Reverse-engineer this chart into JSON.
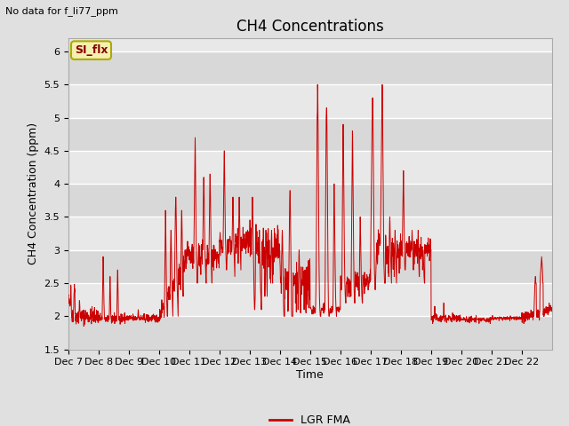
{
  "title": "CH4 Concentrations",
  "ylabel": "CH4 Concentration (ppm)",
  "xlabel": "Time",
  "top_left_note": "No data for f_li77_ppm",
  "legend_label": "LGR FMA",
  "legend_box_label": "SI_flx",
  "ylim": [
    1.5,
    6.2
  ],
  "yticks": [
    1.5,
    2.0,
    2.5,
    3.0,
    3.5,
    4.0,
    4.5,
    5.0,
    5.5,
    6.0
  ],
  "xtick_labels": [
    "Dec 7",
    "Dec 8",
    "Dec 9",
    "Dec 10",
    "Dec 11",
    "Dec 12",
    "Dec 13",
    "Dec 14",
    "Dec 15",
    "Dec 16",
    "Dec 17",
    "Dec 18",
    "Dec 19",
    "Dec 20",
    "Dec 21",
    "Dec 22"
  ],
  "line_color": "#cc0000",
  "fig_bg": "#e0e0e0",
  "plot_bg": "#e8e8e8",
  "band_color": "#d0d0d0",
  "grid_color": "#ffffff",
  "title_fontsize": 12,
  "label_fontsize": 9,
  "tick_fontsize": 8,
  "note_fontsize": 8
}
